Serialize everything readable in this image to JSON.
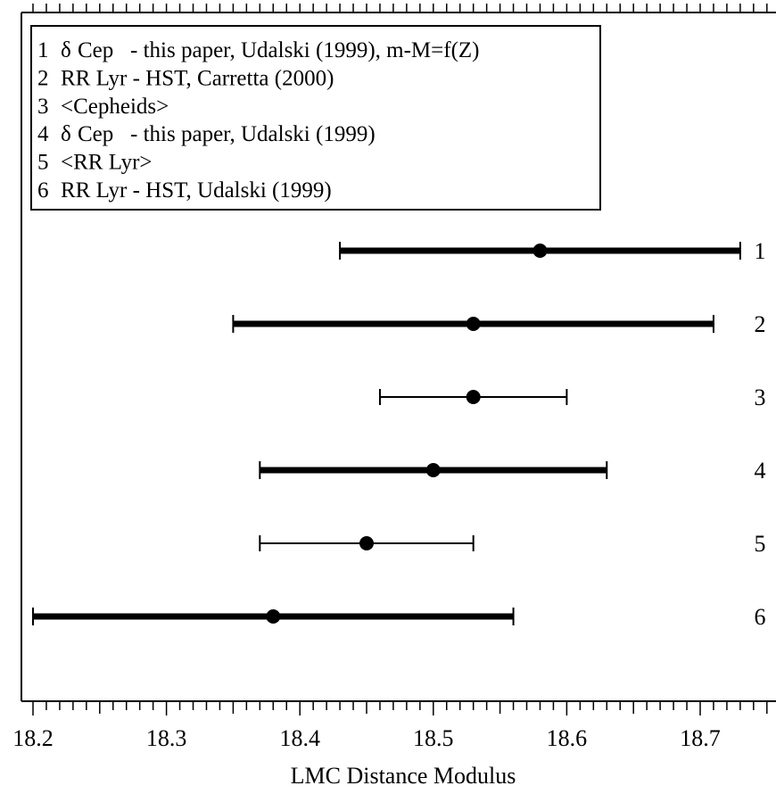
{
  "chart_data": {
    "type": "errorbar",
    "title": "",
    "xlabel": "LMC Distance Modulus",
    "ylabel": "",
    "xlim": [
      18.2,
      18.75
    ],
    "xticks": [
      "18.2",
      "18.3",
      "18.4",
      "18.5",
      "18.6",
      "18.7"
    ],
    "grid": false,
    "legend_position": "top-left",
    "legend": [
      {
        "number": "1",
        "symbol": "δ",
        "text": "Cep   - this paper, Udalski (1999), m-M=f(Z)"
      },
      {
        "number": "2",
        "symbol": "",
        "text": "RR Lyr - HST, Carretta (2000)"
      },
      {
        "number": "3",
        "symbol": "",
        "text": "<Cepheids>"
      },
      {
        "number": "4",
        "symbol": "δ",
        "text": "Cep   - this paper, Udalski (1999)"
      },
      {
        "number": "5",
        "symbol": "",
        "text": "<RR Lyr>"
      },
      {
        "number": "6",
        "symbol": "",
        "text": "RR Lyr - HST, Udalski (1999)"
      }
    ],
    "series": [
      {
        "label": "1",
        "value": 18.58,
        "low": 18.43,
        "high": 18.73,
        "thick": true
      },
      {
        "label": "2",
        "value": 18.53,
        "low": 18.35,
        "high": 18.71,
        "thick": true
      },
      {
        "label": "3",
        "value": 18.53,
        "low": 18.46,
        "high": 18.6,
        "thick": false
      },
      {
        "label": "4",
        "value": 18.5,
        "low": 18.37,
        "high": 18.63,
        "thick": true
      },
      {
        "label": "5",
        "value": 18.45,
        "low": 18.37,
        "high": 18.53,
        "thick": false
      },
      {
        "label": "6",
        "value": 18.38,
        "low": 18.2,
        "high": 18.56,
        "thick": true
      }
    ]
  }
}
